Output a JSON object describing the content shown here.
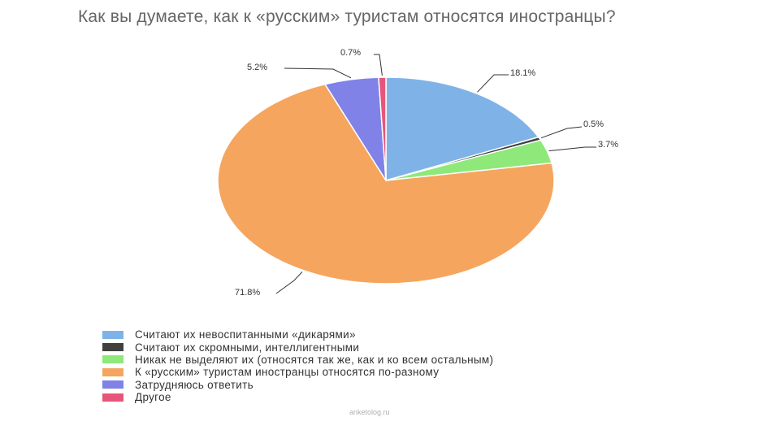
{
  "title": "Как вы думаете, как к «русским» туристам относятся иностранцы?",
  "source": "anketolog.ru",
  "chart_data": {
    "type": "pie",
    "title": "Как вы думаете, как к «русским» туристам относятся иностранцы?",
    "legend_position": "bottom-left",
    "slices": [
      {
        "label": "Считают их невоспитанными «дикарями»",
        "value": 18.1,
        "display": "18.1%",
        "color": "#7fb3e8"
      },
      {
        "label": "Считают их скромными, интеллигентными",
        "value": 0.5,
        "display": "0.5%",
        "color": "#404040"
      },
      {
        "label": "Никак не выделяют их (относятся так же, как и ко всем остальным)",
        "value": 3.7,
        "display": "3.7%",
        "color": "#8ee87a"
      },
      {
        "label": "К «русским» туристам иностранцы относятся по-разному",
        "value": 71.8,
        "display": "71.8%",
        "color": "#f5a55e"
      },
      {
        "label": "Затрудняюсь ответить",
        "value": 5.2,
        "display": "5.2%",
        "color": "#8082e8"
      },
      {
        "label": "Другое",
        "value": 0.7,
        "display": "0.7%",
        "color": "#e8557a"
      }
    ]
  }
}
